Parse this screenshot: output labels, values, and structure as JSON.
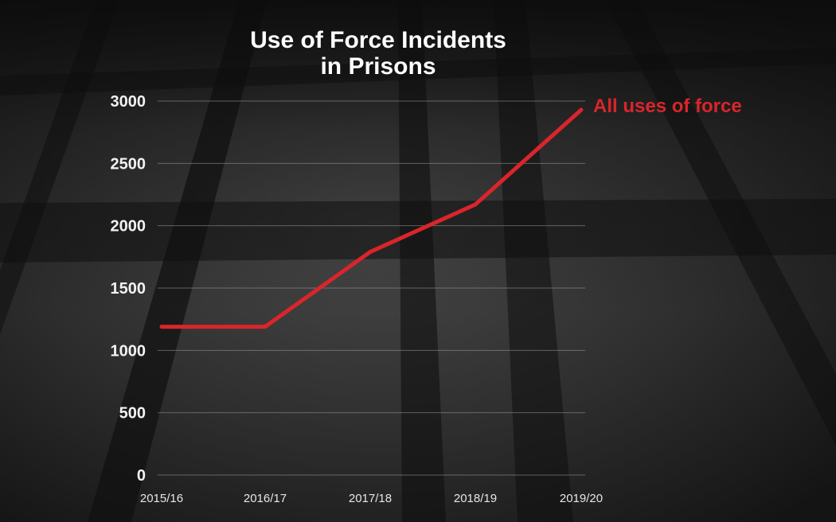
{
  "chart_data": {
    "type": "line",
    "title": [
      "Use of Force Incidents",
      "in Prisons"
    ],
    "categories": [
      "2015/16",
      "2016/17",
      "2017/18",
      "2018/19",
      "2019/20"
    ],
    "series": [
      {
        "name": "All uses of force",
        "values": [
          1190,
          1190,
          1790,
          2170,
          2930
        ],
        "color": "#d9252b"
      }
    ],
    "yticks": [
      "0",
      "500",
      "1000",
      "1500",
      "2000",
      "2500",
      "3000"
    ],
    "ylim": [
      0,
      3000
    ],
    "grid": true,
    "background": "dark photo of prison cell floor with bar shadows"
  }
}
